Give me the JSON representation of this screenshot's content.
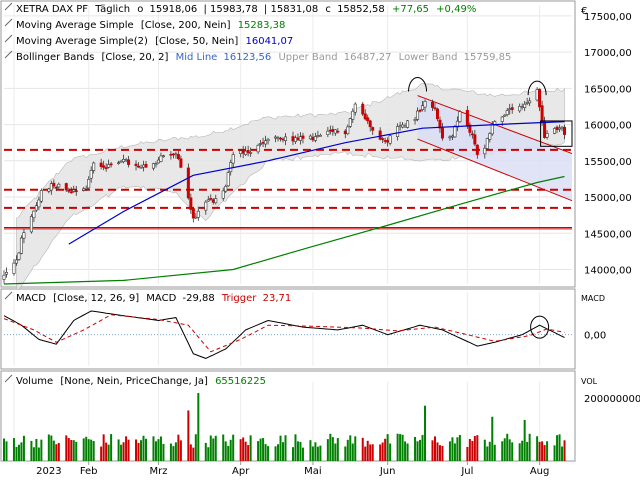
{
  "instrument": "XETRA DAX PF",
  "period": "Täglich",
  "quote": {
    "open_label": "o",
    "open": "15918,06",
    "high": "15983,78",
    "low": "15831,08",
    "close_label": "c",
    "close": "15852,58",
    "change": "+77,65",
    "change_pct": "+0,49%"
  },
  "legend": {
    "ma200": {
      "label": "Moving Average Simple",
      "params": "[Close, 200, Nein]",
      "value": "15283,38"
    },
    "ma50": {
      "label": "Moving Average Simple(2)",
      "params": "[Close, 50, Nein]",
      "value": "16041,07"
    },
    "bb": {
      "label": "Bollinger Bands",
      "params": "[Close, 20, 2]",
      "mid_label": "Mid Line",
      "mid": "16123,56",
      "upper_label": "Upper Band",
      "upper": "16487,27",
      "lower_label": "Lower Band",
      "lower": "15759,85"
    }
  },
  "macd_legend": {
    "label": "MACD",
    "params": "[Close, 12, 26, 9]",
    "value_label": "MACD",
    "value": "-29,88",
    "trigger_label": "Trigger",
    "trigger": "23,71"
  },
  "volume_legend": {
    "label": "Volume",
    "params": "[None, Nein, PriceChange, Ja]",
    "value": "65516225"
  },
  "currency_symbol": "€",
  "panel_labels": {
    "macd": "MACD",
    "volume": "VOL"
  },
  "x_labels": {
    "year": "2023",
    "months": [
      "Feb",
      "Mrz",
      "Apr",
      "Mai",
      "Jun",
      "Jul",
      "Aug"
    ]
  },
  "colors": {
    "up": "#008000",
    "down": "#cc0000",
    "ma200": "#008000",
    "ma50": "#0000cc",
    "band_fill": "#e4e4e4",
    "channel_fill": "#d9dcf5",
    "support": "#cc0000",
    "macd": "#000000",
    "trigger": "#cc0000",
    "quote_change": "#008000",
    "mid_line_label": "#3366cc",
    "band_label": "#999999"
  },
  "chart_data": [
    {
      "type": "candlestick",
      "title": "XETRA DAX PF",
      "y_ticks": [
        14000,
        14500,
        15000,
        15500,
        16000,
        16500,
        17000,
        17500
      ],
      "y_tick_labels": [
        "14000,00",
        "14500,00",
        "15000,00",
        "15500,00",
        "16000,00",
        "16500,00",
        "17000,00",
        "17500,00"
      ],
      "ylim": [
        13800,
        17650
      ],
      "x_range": [
        "2022-12-29",
        "2023-08-14"
      ],
      "grid": true,
      "close_anchors": [
        [
          "2022-12-29",
          13900
        ],
        [
          "2023-01-03",
          14120
        ],
        [
          "2023-01-05",
          14400
        ],
        [
          "2023-01-10",
          14790
        ],
        [
          "2023-01-13",
          15080
        ],
        [
          "2023-01-18",
          15180
        ],
        [
          "2023-01-25",
          15090
        ],
        [
          "2023-01-31",
          15130
        ],
        [
          "2023-02-03",
          15480
        ],
        [
          "2023-02-08",
          15400
        ],
        [
          "2023-02-14",
          15520
        ],
        [
          "2023-02-21",
          15400
        ],
        [
          "2023-02-27",
          15430
        ],
        [
          "2023-03-03",
          15580
        ],
        [
          "2023-03-08",
          15600
        ],
        [
          "2023-03-10",
          15400
        ],
        [
          "2023-03-13",
          15000
        ],
        [
          "2023-03-15",
          14700
        ],
        [
          "2023-03-17",
          14800
        ],
        [
          "2023-03-20",
          14950
        ],
        [
          "2023-03-24",
          14950
        ],
        [
          "2023-03-28",
          15150
        ],
        [
          "2023-03-31",
          15620
        ],
        [
          "2023-04-06",
          15600
        ],
        [
          "2023-04-14",
          15800
        ],
        [
          "2023-04-20",
          15800
        ],
        [
          "2023-04-26",
          15800
        ],
        [
          "2023-05-03",
          15820
        ],
        [
          "2023-05-10",
          15900
        ],
        [
          "2023-05-15",
          15900
        ],
        [
          "2023-05-19",
          16280
        ],
        [
          "2023-05-26",
          15950
        ],
        [
          "2023-05-31",
          15750
        ],
        [
          "2023-06-05",
          15950
        ],
        [
          "2023-06-12",
          16100
        ],
        [
          "2023-06-16",
          16350
        ],
        [
          "2023-06-20",
          16200
        ],
        [
          "2023-06-23",
          15830
        ],
        [
          "2023-06-27",
          15850
        ],
        [
          "2023-06-30",
          16150
        ],
        [
          "2023-07-05",
          15850
        ],
        [
          "2023-07-07",
          15600
        ],
        [
          "2023-07-10",
          15700
        ],
        [
          "2023-07-13",
          16000
        ],
        [
          "2023-07-18",
          16150
        ],
        [
          "2023-07-21",
          16200
        ],
        [
          "2023-07-26",
          16250
        ],
        [
          "2023-07-31",
          16450
        ],
        [
          "2023-08-01",
          16250
        ],
        [
          "2023-08-03",
          15850
        ],
        [
          "2023-08-07",
          15950
        ],
        [
          "2023-08-10",
          15950
        ],
        [
          "2023-08-11",
          15850
        ]
      ],
      "ma200_anchors": [
        [
          "2022-12-29",
          13800
        ],
        [
          "2023-02-15",
          13850
        ],
        [
          "2023-03-31",
          14000
        ],
        [
          "2023-04-30",
          14300
        ],
        [
          "2023-05-31",
          14600
        ],
        [
          "2023-06-30",
          14900
        ],
        [
          "2023-07-31",
          15200
        ],
        [
          "2023-08-11",
          15283
        ]
      ],
      "ma50_anchors": [
        [
          "2023-01-24",
          14350
        ],
        [
          "2023-02-15",
          14800
        ],
        [
          "2023-03-15",
          15300
        ],
        [
          "2023-04-14",
          15500
        ],
        [
          "2023-05-15",
          15750
        ],
        [
          "2023-06-15",
          15950
        ],
        [
          "2023-07-14",
          16000
        ],
        [
          "2023-08-11",
          16041
        ]
      ],
      "bb_upper_anchors": [
        [
          "2023-01-03",
          14700
        ],
        [
          "2023-01-24",
          15500
        ],
        [
          "2023-02-15",
          15700
        ],
        [
          "2023-03-06",
          15800
        ],
        [
          "2023-03-20",
          15850
        ],
        [
          "2023-04-14",
          16100
        ],
        [
          "2023-05-15",
          16150
        ],
        [
          "2023-06-15",
          16550
        ],
        [
          "2023-07-14",
          16400
        ],
        [
          "2023-08-11",
          16487
        ]
      ],
      "bb_lower_anchors": [
        [
          "2023-01-03",
          13700
        ],
        [
          "2023-01-24",
          14700
        ],
        [
          "2023-02-15",
          15150
        ],
        [
          "2023-03-06",
          15100
        ],
        [
          "2023-03-20",
          14700
        ],
        [
          "2023-04-14",
          15500
        ],
        [
          "2023-05-15",
          15600
        ],
        [
          "2023-06-15",
          15500
        ],
        [
          "2023-07-14",
          15600
        ],
        [
          "2023-08-11",
          15760
        ]
      ],
      "support_lines": [
        15650,
        15100,
        14850,
        14580,
        14560
      ],
      "downtrend_channel": {
        "upper": [
          [
            "2023-06-13",
            16400
          ],
          [
            "2023-08-14",
            15600
          ]
        ],
        "lower": [
          [
            "2023-06-13",
            15800
          ],
          [
            "2023-08-14",
            14950
          ]
        ]
      }
    },
    {
      "type": "line",
      "title": "MACD",
      "y_ticks": [
        0
      ],
      "y_tick_labels": [
        "0,00"
      ],
      "ylim": [
        -330,
        450
      ],
      "series": [
        {
          "name": "MACD",
          "anchors": [
            [
              "2022-12-29",
              200
            ],
            [
              "2023-01-05",
              100
            ],
            [
              "2023-01-12",
              -50
            ],
            [
              "2023-01-19",
              -100
            ],
            [
              "2023-01-26",
              150
            ],
            [
              "2023-02-02",
              250
            ],
            [
              "2023-02-15",
              200
            ],
            [
              "2023-03-01",
              150
            ],
            [
              "2023-03-08",
              180
            ],
            [
              "2023-03-15",
              -200
            ],
            [
              "2023-03-20",
              -250
            ],
            [
              "2023-03-28",
              -150
            ],
            [
              "2023-04-05",
              50
            ],
            [
              "2023-04-14",
              150
            ],
            [
              "2023-04-28",
              80
            ],
            [
              "2023-05-12",
              50
            ],
            [
              "2023-05-22",
              100
            ],
            [
              "2023-06-01",
              0
            ],
            [
              "2023-06-14",
              100
            ],
            [
              "2023-06-23",
              50
            ],
            [
              "2023-07-07",
              -120
            ],
            [
              "2023-07-14",
              -80
            ],
            [
              "2023-07-25",
              0
            ],
            [
              "2023-08-01",
              100
            ],
            [
              "2023-08-11",
              -30
            ]
          ]
        },
        {
          "name": "Trigger",
          "anchors": [
            [
              "2022-12-29",
              170
            ],
            [
              "2023-01-10",
              50
            ],
            [
              "2023-01-19",
              -80
            ],
            [
              "2023-01-30",
              50
            ],
            [
              "2023-02-10",
              210
            ],
            [
              "2023-03-01",
              160
            ],
            [
              "2023-03-13",
              100
            ],
            [
              "2023-03-22",
              -180
            ],
            [
              "2023-04-03",
              -50
            ],
            [
              "2023-04-14",
              100
            ],
            [
              "2023-05-01",
              90
            ],
            [
              "2023-05-22",
              70
            ],
            [
              "2023-06-05",
              40
            ],
            [
              "2023-06-20",
              80
            ],
            [
              "2023-07-03",
              0
            ],
            [
              "2023-07-14",
              -70
            ],
            [
              "2023-07-28",
              -10
            ],
            [
              "2023-08-04",
              60
            ],
            [
              "2023-08-11",
              24
            ]
          ]
        }
      ]
    },
    {
      "type": "bar",
      "title": "Volume",
      "y_ticks": [
        200000000
      ],
      "y_tick_labels": [
        "200000000"
      ],
      "ylim": [
        0,
        250000000
      ],
      "typical_volume": 65000000,
      "spikes": [
        [
          "2023-03-13",
          160000000
        ],
        [
          "2023-03-17",
          215000000
        ],
        [
          "2023-06-16",
          175000000
        ],
        [
          "2023-07-13",
          140000000
        ],
        [
          "2023-07-26",
          130000000
        ],
        [
          "2023-08-11",
          65516225
        ]
      ]
    }
  ]
}
